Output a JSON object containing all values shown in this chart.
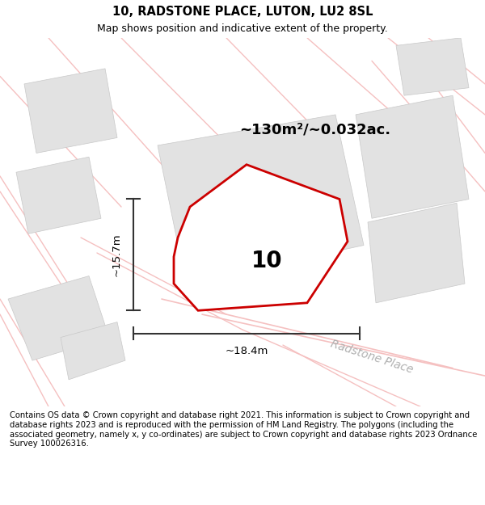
{
  "title": "10, RADSTONE PLACE, LUTON, LU2 8SL",
  "subtitle": "Map shows position and indicative extent of the property.",
  "footer": "Contains OS data © Crown copyright and database right 2021. This information is subject to Crown copyright and database rights 2023 and is reproduced with the permission of HM Land Registry. The polygons (including the associated geometry, namely x, y co-ordinates) are subject to Crown copyright and database rights 2023 Ordnance Survey 100026316.",
  "area_label": "~130m²/~0.032ac.",
  "width_label": "~18.4m",
  "height_label": "~15.7m",
  "plot_number": "10",
  "background_color": "#ffffff",
  "road_color": "#f5c0c0",
  "building_color": "#e2e2e2",
  "plot_outline_color": "#cc0000",
  "road_label": "Radstone Place",
  "road_label_color": "#b0b0b0",
  "dim_color": "#333333",
  "title_fontsize": 10.5,
  "subtitle_fontsize": 9,
  "footer_fontsize": 7.2
}
